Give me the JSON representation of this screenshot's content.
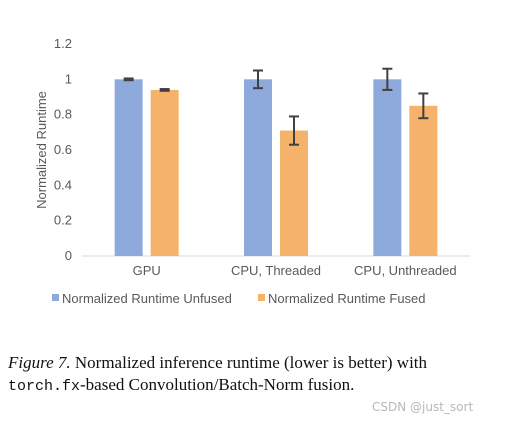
{
  "chart_data": {
    "type": "bar",
    "categories": [
      "GPU",
      "CPU, Threaded",
      "CPU, Unthreaded"
    ],
    "series": [
      {
        "name": "Normalized Runtime Unfused",
        "values": [
          1.0,
          1.0,
          1.0
        ],
        "error": [
          0.005,
          0.05,
          0.06
        ],
        "color": "#8EA9DB"
      },
      {
        "name": "Normalized Runtime Fused",
        "values": [
          0.94,
          0.71,
          0.85
        ],
        "error": [
          0.005,
          0.08,
          0.07
        ],
        "color": "#F4B26B"
      }
    ],
    "ylabel": "Normalized Runtime",
    "ylim": [
      0,
      1.2
    ],
    "yticks": [
      0,
      0.2,
      0.4,
      0.6,
      0.8,
      1,
      1.2
    ],
    "ytick_labels": [
      "0",
      "0.2",
      "0.4",
      "0.6",
      "0.8",
      "1",
      "1.2"
    ],
    "grid": false,
    "legend_position": "bottom",
    "error_bar_color": "#404040"
  },
  "caption": {
    "figure_label": "Figure 7.",
    "line1": "Normalized inference runtime (lower is better) with",
    "code": "torch.fx",
    "line2_rest": "-based Convolution/Batch-Norm fusion."
  },
  "watermark": "CSDN @just_sort"
}
